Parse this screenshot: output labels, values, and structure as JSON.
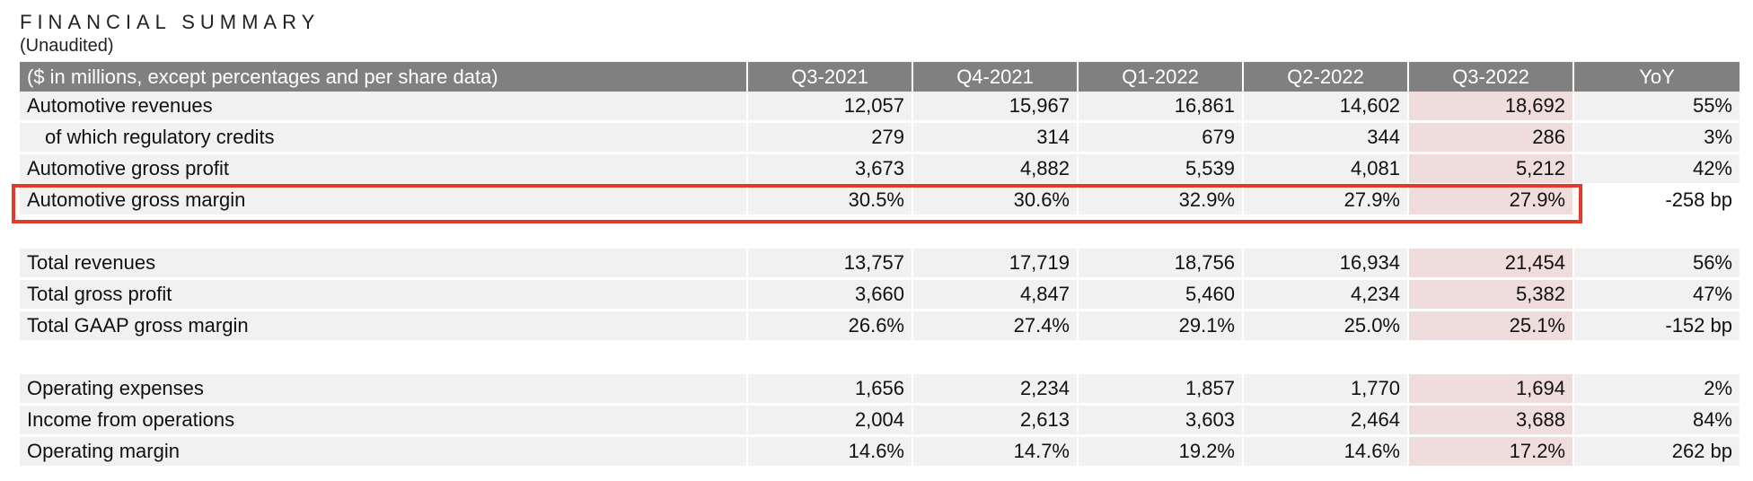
{
  "title": "FINANCIAL SUMMARY",
  "subtitle": "(Unaudited)",
  "table": {
    "header": [
      "($ in millions, except percentages and per share data)",
      "Q3-2021",
      "Q4-2021",
      "Q1-2022",
      "Q2-2022",
      "Q3-2022",
      "YoY"
    ],
    "rows": [
      [
        "Automotive revenues",
        "12,057",
        "15,967",
        "16,861",
        "14,602",
        "18,692",
        "55%"
      ],
      [
        "of which regulatory credits",
        "279",
        "314",
        "679",
        "344",
        "286",
        "3%"
      ],
      [
        "Automotive gross profit",
        "3,673",
        "4,882",
        "5,539",
        "4,081",
        "5,212",
        "42%"
      ],
      [
        "Automotive gross margin",
        "30.5%",
        "30.6%",
        "32.9%",
        "27.9%",
        "27.9%",
        "-258 bp"
      ],
      [
        "Total revenues",
        "13,757",
        "17,719",
        "18,756",
        "16,934",
        "21,454",
        "56%"
      ],
      [
        "Total gross profit",
        "3,660",
        "4,847",
        "5,460",
        "4,234",
        "5,382",
        "47%"
      ],
      [
        "Total GAAP gross margin",
        "26.6%",
        "27.4%",
        "29.1%",
        "25.0%",
        "25.1%",
        "-152 bp"
      ],
      [
        "Operating expenses",
        "1,656",
        "2,234",
        "1,857",
        "1,770",
        "1,694",
        "2%"
      ],
      [
        "Income from operations",
        "2,004",
        "2,613",
        "3,603",
        "2,464",
        "3,688",
        "84%"
      ],
      [
        "Operating margin",
        "14.6%",
        "14.7%",
        "19.2%",
        "14.6%",
        "17.2%",
        "262 bp"
      ]
    ]
  },
  "colors": {
    "header_bg": "#808080",
    "row_bg": "#f1f1f1",
    "highlight_col_bg": "#efdcdc",
    "annotation_box": "#e03c28"
  }
}
